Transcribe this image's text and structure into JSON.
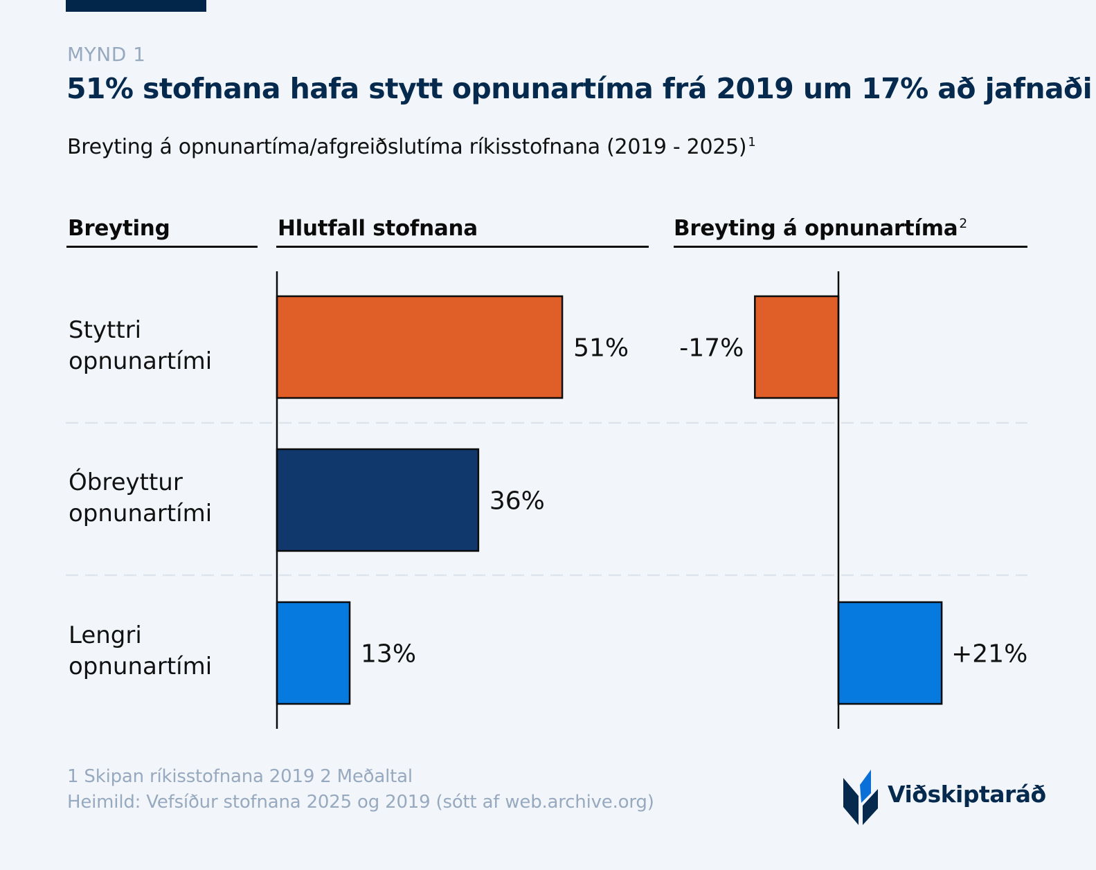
{
  "header": {
    "eyebrow": "MYND 1",
    "title": "51% stofnana hafa stytt opnunartíma frá 2019 um 17% að jafnaði",
    "subtitle": "Breyting á opnunartíma/afgreiðslutíma ríkisstofnana (2019 - 2025)",
    "subtitle_sup": "1"
  },
  "columns": {
    "change": "Breyting",
    "share": "Hlutfall stofnana",
    "hours": "Breyting á opnunartíma",
    "hours_sup": "2"
  },
  "rows": [
    {
      "line1": "Styttri",
      "line2": "opnunartími"
    },
    {
      "line1": "Óbreyttur",
      "line2": "opnunartími"
    },
    {
      "line1": "Lengri",
      "line2": "opnunartími"
    }
  ],
  "chart_data": [
    {
      "type": "bar",
      "orientation": "horizontal",
      "title": "Hlutfall stofnana",
      "categories": [
        "Styttri opnunartími",
        "Óbreyttur opnunartími",
        "Lengri opnunartími"
      ],
      "values": [
        51,
        36,
        13
      ],
      "labels": [
        "51%",
        "36%",
        "13%"
      ],
      "unit": "%",
      "xlim": [
        0,
        65
      ],
      "colors": [
        "#e05e27",
        "#10386d",
        "#077ae0"
      ]
    },
    {
      "type": "bar",
      "orientation": "horizontal",
      "title": "Breyting á opnunartíma",
      "categories": [
        "Styttri opnunartími",
        "Óbreyttur opnunartími",
        "Lengri opnunartími"
      ],
      "values": [
        -17,
        null,
        21
      ],
      "labels": [
        "-17%",
        "",
        "+21%"
      ],
      "unit": "%",
      "xlim": [
        -50,
        40
      ],
      "colors": [
        "#e05e27",
        "#10386d",
        "#077ae0"
      ]
    }
  ],
  "footer": {
    "notes": "1 Skipan ríkisstofnana 2019 2 Meðaltal",
    "source": "Heimild: Vefsíður stofnana 2025 og 2019 (sótt af web.archive.org)"
  },
  "logo": {
    "text": "Viðskiptaráð",
    "icon": "wheat-sprout-logo-icon"
  },
  "colors": {
    "navy": "#052a4e",
    "orange": "#e05e27",
    "dark_blue": "#10386d",
    "blue": "#077ae0",
    "muted": "#97a9bf",
    "background": "#f2f6fb"
  }
}
